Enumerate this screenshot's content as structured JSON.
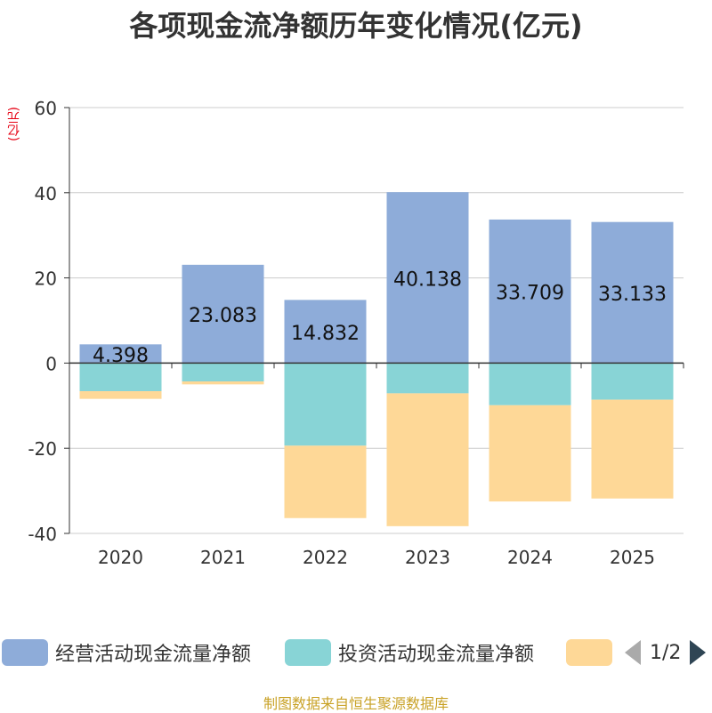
{
  "chart_data": {
    "type": "bar",
    "stacked": true,
    "title": "各项现金流净额历年变化情况(亿元)",
    "ylabel": "(亿元)",
    "xlabel": "",
    "categories": [
      "2020",
      "2021",
      "2022",
      "2023",
      "2024",
      "2025"
    ],
    "ylim": [
      -40,
      60
    ],
    "yticks": [
      60,
      40,
      20,
      0,
      -20,
      -40
    ],
    "grid": true,
    "series": [
      {
        "name": "经营活动现金流量净额",
        "color": "#8eacd9",
        "values": [
          4.398,
          23.083,
          14.832,
          40.138,
          33.709,
          33.133
        ],
        "labels": [
          "4.398",
          "23.083",
          "14.832",
          "40.138",
          "33.709",
          "33.133"
        ]
      },
      {
        "name": "投资活动现金流量净额",
        "color": "#88d4d6",
        "values": [
          -6.6,
          -4.3,
          -19.4,
          -7.1,
          -9.9,
          -8.6
        ]
      },
      {
        "name": "",
        "color": "#fed897",
        "values": [
          -1.8,
          -0.7,
          -17.0,
          -31.2,
          -22.6,
          -23.2
        ]
      }
    ],
    "legend": {
      "position": "bottom",
      "page": "1/2"
    }
  },
  "source": "制图数据来自恒生聚源数据库"
}
